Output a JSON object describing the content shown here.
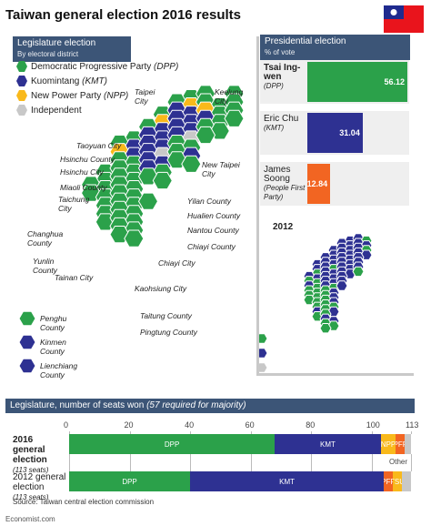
{
  "title": "Taiwan general election 2016 results",
  "legislature_map": {
    "heading": "Legislature election",
    "subheading": "By electoral district",
    "legend": [
      {
        "label": "Democratic Progressive Party",
        "abbr": "(DPP)",
        "color": "#2ba14a"
      },
      {
        "label": "Kuomintang",
        "abbr": "(KMT)",
        "color": "#2e3192"
      },
      {
        "label": "New Power Party",
        "abbr": "(NPP)",
        "color": "#f9b91b"
      },
      {
        "label": "Independent",
        "abbr": "",
        "color": "#c8c8c8"
      }
    ],
    "places": [
      "Taipei City",
      "Keelung City",
      "Taoyuan City",
      "Hsinchu County",
      "Hsinchu City",
      "New Taipei City",
      "Miaoli County",
      "Taichung City",
      "Yilan County",
      "Hualien County",
      "Changhua County",
      "Nantou County",
      "Chiayi County",
      "Yunlin County",
      "Chiayi City",
      "Tainan City",
      "Kaohsiung City",
      "Taitung County",
      "Pingtung County",
      "Penghu County",
      "Kinmen County",
      "Lienchiang County"
    ]
  },
  "map_2012_label": "2012",
  "presidential": {
    "heading": "Presidential election",
    "subheading": "% of vote",
    "candidates": [
      {
        "name": "Tsai Ing-wen",
        "party": "(DPP)",
        "value": 56.12,
        "value_label": "56.12",
        "color": "#2ba14a"
      },
      {
        "name": "Eric Chu",
        "party": "(KMT)",
        "value": 31.04,
        "value_label": "31.04",
        "color": "#2e3192"
      },
      {
        "name": "James Soong",
        "party": "(People First Party)",
        "value": 12.84,
        "value_label": "12.84",
        "color": "#f26522"
      }
    ]
  },
  "seats": {
    "heading": "Legislature, number of seats won",
    "heading_note": "(57 required for majority)",
    "ticks": [
      "0",
      "20",
      "40",
      "60",
      "80",
      "100",
      "113"
    ],
    "rows": [
      {
        "label": "2016 general election",
        "sub": "(113 seats)"
      },
      {
        "label": "2012 general election",
        "sub": "(113 seats)"
      }
    ],
    "other_label": "Other"
  },
  "chart_data": {
    "type": "bar",
    "orientation": "horizontal",
    "stacked": true,
    "categories": [
      "2016 general election",
      "2012 general election"
    ],
    "xlim": [
      0,
      113
    ],
    "series": [
      {
        "name": "DPP",
        "color": "#2ba14a",
        "values": [
          68,
          40
        ]
      },
      {
        "name": "KMT",
        "color": "#2e3192",
        "values": [
          35,
          64
        ]
      },
      {
        "name": "NPP",
        "color": "#f9b91b",
        "values": [
          5,
          0
        ]
      },
      {
        "name": "PFP",
        "color": "#f26522",
        "values": [
          3,
          3
        ]
      },
      {
        "name": "TSU",
        "color": "#f9b91b",
        "values": [
          0,
          3
        ]
      },
      {
        "name": "Other",
        "color": "#c8c8c8",
        "values": [
          2,
          3
        ]
      }
    ]
  },
  "source": "Source: Taiwan central election commission",
  "credit": "Economist.com"
}
